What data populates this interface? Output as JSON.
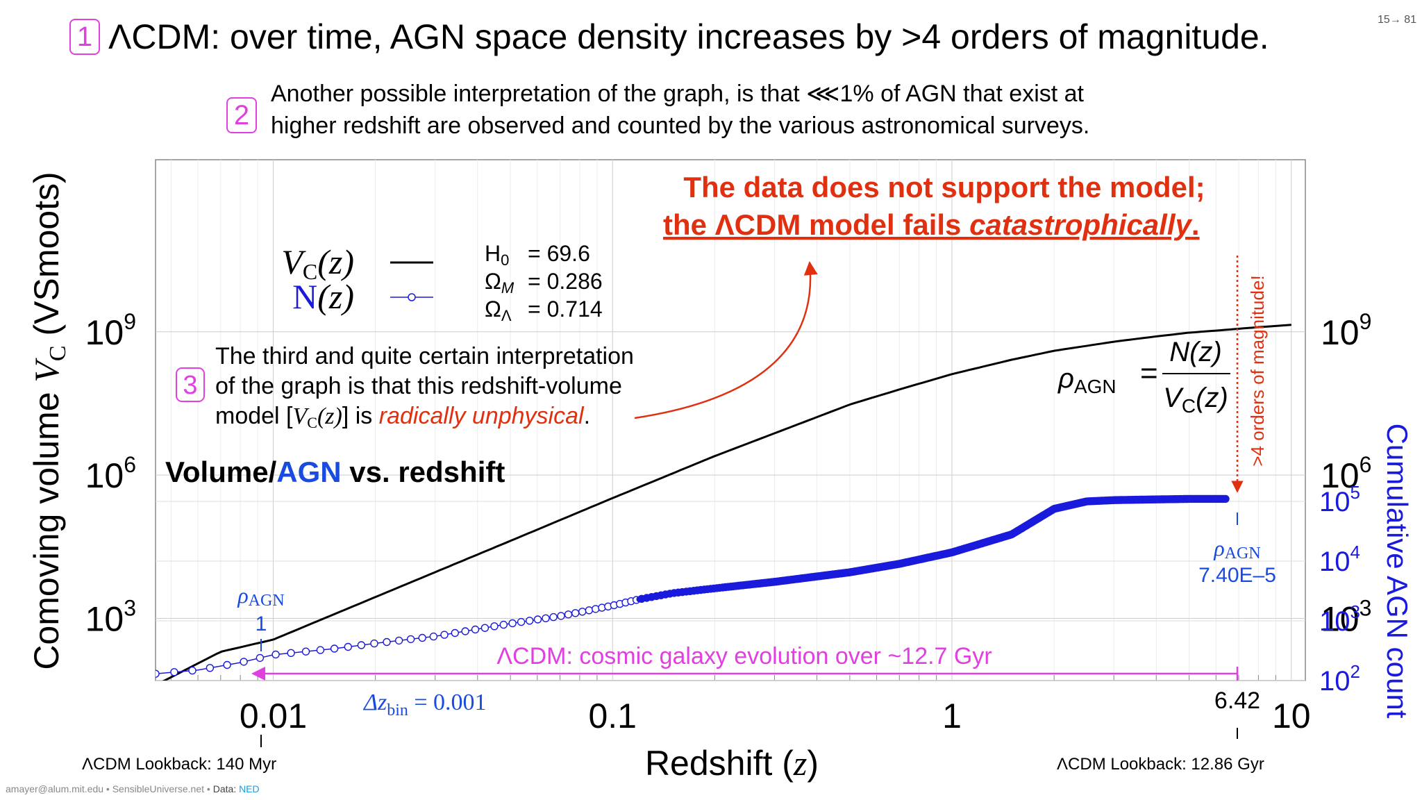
{
  "slide": {
    "title_num": "1",
    "title": "ΛCDM: over time, AGN space density increases by >4 orders of magnitude.",
    "page_number": "15→  81",
    "interp2_num": "2",
    "interp2_line1": "Another possible interpretation of the graph, is that ⋘1% of AGN that exist at",
    "interp2_line2": "higher redshift are observed and counted by the various astronomical surveys.",
    "interp3_num": "3",
    "interp3_line1": "The third and quite certain interpretation",
    "interp3_line2": "of the graph is that this redshift-volume",
    "interp3_line3_a": "model [",
    "interp3_line3_b": "V",
    "interp3_line3_c": "C",
    "interp3_line3_d": "(z)",
    "interp3_line3_e": "] is ",
    "interp3_line3_red": "radically unphysical",
    "interp3_line3_end": ".",
    "callout_line1": "The data does not support the model;",
    "callout_line2_a": "the ΛCDM model fails ",
    "callout_line2_b": "catastrophically",
    "callout_line2_c": ".",
    "footer_contact": "amayer@alum.mit.edu • SensibleUniverse.net • ",
    "footer_data_label": "Data: ",
    "footer_data_src": "NED"
  },
  "chart_data": {
    "type": "line",
    "title_black": "Volume/",
    "title_blue": "AGN",
    "title_rest": " vs. redshift",
    "xlabel": "Redshift (",
    "xlabel_var": "z",
    "xlabel_end": ")",
    "ylabel_left": "Comoving volume ",
    "ylabel_left_var": "V",
    "ylabel_left_sub": "C",
    "ylabel_left_unit": " (VSmoots)",
    "ylabel_right": "Cumulative AGN count",
    "x_scale": "log",
    "xlim": [
      0.0045,
      11
    ],
    "x_ticks": [
      "0.01",
      "0.1",
      "1",
      "10"
    ],
    "x_tick_values": [
      0.01,
      0.1,
      1,
      10
    ],
    "y_left_scale": "log",
    "y_left_ticks": [
      "10",
      "10",
      "10"
    ],
    "y_left_tick_exps": [
      "3",
      "6",
      "9"
    ],
    "y_left_tick_values": [
      1000,
      1000000,
      1000000000
    ],
    "y_left_lim": [
      50,
      4000000000000
    ],
    "y_right_ticks": [
      "10",
      "10",
      "10",
      "10"
    ],
    "y_right_tick_exps": [
      "2",
      "3",
      "4",
      "5"
    ],
    "y_right_tick_values": [
      100,
      1000,
      10000,
      100000
    ],
    "legend": {
      "vc_label": "V",
      "vc_sub": "C",
      "vc_arg": "(z)",
      "n_label": "N",
      "n_arg": "(z)"
    },
    "params": {
      "h0_label": "H",
      "h0_sub": "0",
      "h0_value": "= 69.6",
      "om_label": "Ω",
      "om_sub": "M",
      "om_value": "= 0.286",
      "ol_label": "Ω",
      "ol_sub": "Λ",
      "ol_value": "= 0.714"
    },
    "series": [
      {
        "name": "V_C(z)",
        "color": "#000000",
        "x": [
          0.0045,
          0.007,
          0.01,
          0.02,
          0.05,
          0.1,
          0.2,
          0.3,
          0.5,
          0.7,
          1.0,
          1.5,
          2.0,
          3.0,
          4.0,
          5.0,
          6.42,
          8.0,
          10.0
        ],
        "y": [
          40,
          200,
          360,
          2800,
          42000,
          330000,
          2500000,
          7500000,
          30000000,
          62000000,
          130000000,
          260000000,
          400000000,
          620000000,
          800000000,
          960000000,
          1100000000,
          1250000000,
          1400000000
        ]
      },
      {
        "name": "N(z)",
        "color": "#1a1adc",
        "x": [
          0.0045,
          0.006,
          0.008,
          0.01,
          0.015,
          0.02,
          0.03,
          0.05,
          0.07,
          0.1,
          0.12,
          0.15,
          0.2,
          0.3,
          0.5,
          0.7,
          1.0,
          1.5,
          2.0,
          2.5,
          3.0,
          4.0,
          5.0,
          6.0,
          6.42
        ],
        "y": [
          130,
          150,
          200,
          270,
          340,
          420,
          550,
          900,
          1200,
          1800,
          2300,
          2900,
          3500,
          4500,
          6500,
          9000,
          14000,
          28000,
          75000,
          100000,
          105000,
          108000,
          110000,
          110000,
          110000
        ]
      }
    ],
    "annotations": {
      "rho_eq_lhs": "ρ",
      "rho_eq_lhs_sub": "AGN",
      "rho_eq_eq": "=",
      "rho_eq_num": "N(z)",
      "rho_eq_den": "V",
      "rho_eq_den_sub": "C",
      "rho_eq_den_arg": "(z)",
      "orders_label": ">4 orders of magnitude!",
      "rho_low_label": "ρ",
      "rho_low_sub": "AGN",
      "rho_low_value": "1",
      "rho_high_label": "ρ",
      "rho_high_sub": "AGN",
      "rho_high_value": "7.40E–5",
      "evolution_label": "ΛCDM: cosmic galaxy evolution over ~12.7 Gyr",
      "dz_label": "Δz",
      "dz_sub": "bin",
      "dz_value": " = 0.001",
      "z_marker": "6.42",
      "lookback_low": "ΛCDM Lookback: 140 Myr",
      "lookback_high": "ΛCDM Lookback: 12.86 Gyr"
    },
    "colors": {
      "vc_line": "#000000",
      "agn": "#1a1adc",
      "accent_red": "#e03010",
      "magenta": "#e040e0"
    }
  }
}
